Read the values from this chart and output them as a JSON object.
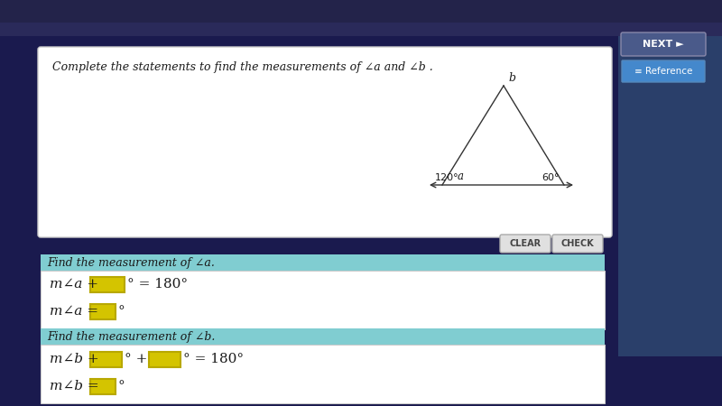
{
  "title": "Complete the statements to find the measurements of ∠a and ∠b .",
  "bg_outer": "#1a1a4e",
  "bg_white": "#ffffff",
  "bg_teal": "#80cdd1",
  "box_yellow": "#d4c400",
  "box_yellow_edge": "#b8a800",
  "text_dark": "#1a1a1a",
  "section1_title": "Find the measurement of ∠a.",
  "section2_title": "Find the measurement of ∠b.",
  "eq1_left": "m∠a + ",
  "eq1_right": "° = 180°",
  "eq2_left": "m∠a = ",
  "eq2_right": "°",
  "eq3_left": "m∠b + ",
  "eq3_mid": "° + ",
  "eq3_right": "° = 180°",
  "eq4_left": "m∠b = ",
  "eq4_right": "°",
  "btn_bg": "#e0e0e0",
  "btn_edge": "#aaaaaa",
  "panel_edge": "#cccccc",
  "right_sidebar_bg": "#3a5a8a"
}
